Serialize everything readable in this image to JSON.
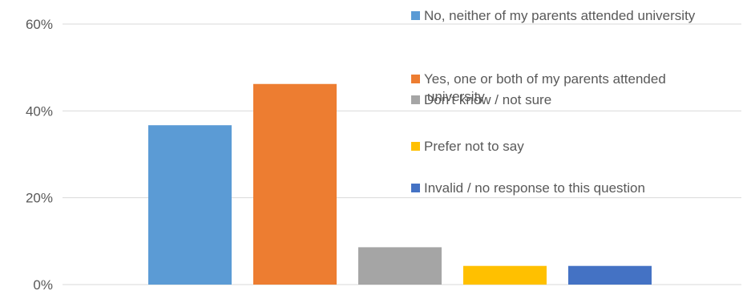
{
  "chart_data": {
    "type": "bar",
    "title": "",
    "xlabel": "",
    "ylabel": "",
    "y_unit": "%",
    "ylim": [
      0,
      60
    ],
    "yticks": [
      0,
      20,
      40,
      60
    ],
    "ytick_labels": [
      "0%",
      "20%",
      "40%",
      "60%"
    ],
    "grid": true,
    "legend_position": "right",
    "series": [
      {
        "name": "No, neither of my parents attended university",
        "value": 36.7,
        "color": "#5b9bd5"
      },
      {
        "name": "Yes, one or both of my parents attended university",
        "value": 46.2,
        "color": "#ed7d31"
      },
      {
        "name": "Don't know / not sure",
        "value": 8.6,
        "color": "#a5a5a5"
      },
      {
        "name": "Prefer not to say",
        "value": 4.3,
        "color": "#ffc000"
      },
      {
        "name": "Invalid / no response to this question",
        "value": 4.3,
        "color": "#4472c4"
      }
    ]
  }
}
